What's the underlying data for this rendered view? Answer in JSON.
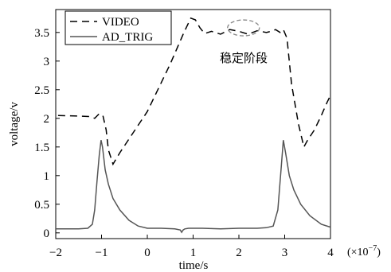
{
  "chart_data": {
    "type": "line",
    "xlabel": "time/s",
    "ylabel": "voltage/v",
    "x_scale_note": "(×10",
    "x_scale_exp": "−7",
    "xlim": [
      -2,
      4
    ],
    "ylim": [
      -0.1,
      3.9
    ],
    "x_ticks": [
      -2,
      -1,
      0,
      1,
      2,
      3,
      4
    ],
    "x_tick_labels": [
      "−2",
      "−1",
      "0",
      "1",
      "2",
      "3",
      "4"
    ],
    "y_ticks": [
      0,
      0.5,
      1,
      1.5,
      2,
      2.5,
      3,
      3.5
    ],
    "y_tick_labels": [
      "0",
      "0.5",
      "1",
      "1.5",
      "2",
      "2.5",
      "3",
      "3.5"
    ],
    "grid": false,
    "legend_position": "top-left",
    "annotation": {
      "text": "稳定阶段",
      "ellipse_center": [
        2.1,
        3.58
      ]
    },
    "series": [
      {
        "name": "VIDEO",
        "style": "dashed",
        "color": "#000000",
        "x": [
          -1.95,
          -1.5,
          -1.25,
          -1.15,
          -1.05,
          -0.97,
          -0.9,
          -0.85,
          -0.75,
          -0.6,
          0.0,
          0.5,
          0.8,
          0.95,
          1.05,
          1.15,
          1.25,
          1.4,
          1.6,
          1.8,
          2.0,
          2.2,
          2.4,
          2.6,
          2.7,
          2.8,
          2.9,
          2.97,
          3.05,
          3.15,
          3.3,
          3.42,
          3.5,
          3.65,
          3.8,
          3.92,
          4.0
        ],
        "y": [
          2.05,
          2.04,
          2.03,
          2.0,
          2.08,
          2.05,
          1.8,
          1.45,
          1.2,
          1.4,
          2.12,
          2.95,
          3.5,
          3.75,
          3.72,
          3.58,
          3.48,
          3.52,
          3.47,
          3.55,
          3.52,
          3.47,
          3.53,
          3.5,
          3.52,
          3.55,
          3.5,
          3.55,
          3.4,
          2.6,
          1.9,
          1.5,
          1.62,
          1.8,
          2.05,
          2.27,
          2.4
        ]
      },
      {
        "name": "AD_TRIG",
        "style": "solid",
        "color": "#555555",
        "x": [
          -2.0,
          -1.5,
          -1.3,
          -1.2,
          -1.15,
          -1.1,
          -1.05,
          -1.01,
          -0.98,
          -0.92,
          -0.85,
          -0.75,
          -0.6,
          -0.4,
          -0.2,
          0.0,
          0.3,
          0.6,
          0.72,
          0.75,
          0.78,
          0.82,
          0.9,
          1.2,
          1.6,
          2.0,
          2.4,
          2.6,
          2.75,
          2.85,
          2.92,
          2.97,
          3.02,
          3.1,
          3.2,
          3.35,
          3.55,
          3.8,
          4.0
        ],
        "y": [
          0.07,
          0.07,
          0.08,
          0.15,
          0.4,
          0.9,
          1.35,
          1.62,
          1.5,
          1.1,
          0.85,
          0.6,
          0.4,
          0.22,
          0.12,
          0.08,
          0.08,
          0.07,
          0.05,
          0.01,
          0.05,
          0.07,
          0.08,
          0.08,
          0.07,
          0.08,
          0.08,
          0.09,
          0.12,
          0.4,
          1.1,
          1.62,
          1.4,
          1.0,
          0.75,
          0.5,
          0.3,
          0.15,
          0.1
        ]
      }
    ]
  }
}
